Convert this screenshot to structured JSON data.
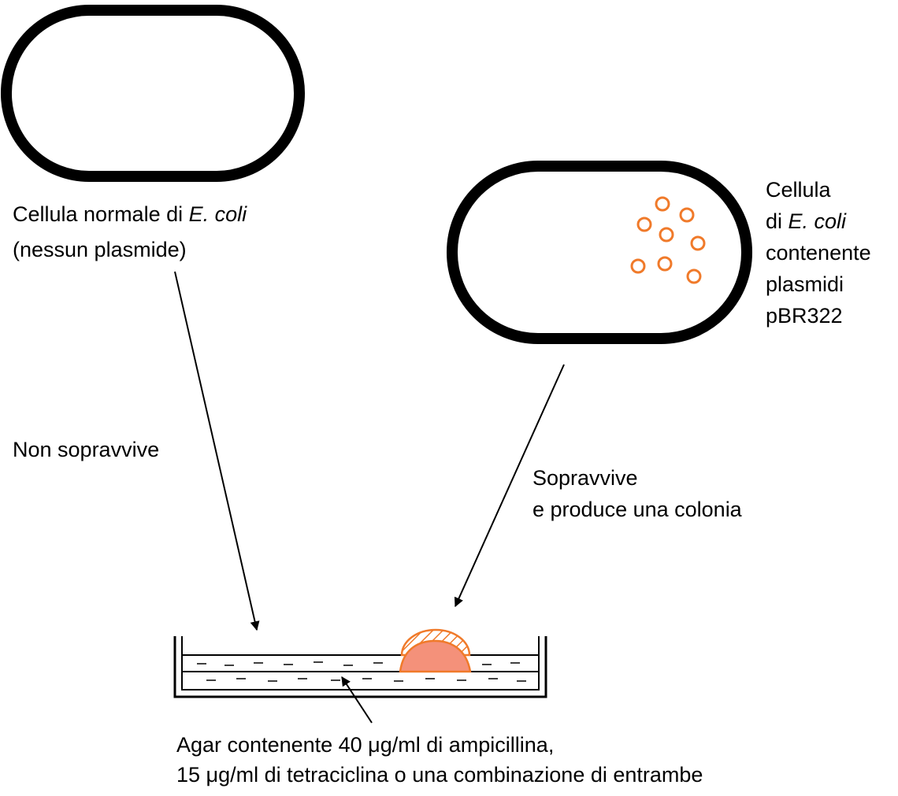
{
  "cell_normal": {
    "line1": "Cellula normale di ",
    "line1_italic": "E. coli",
    "line2": "(nessun plasmide)"
  },
  "cell_plasmid": {
    "line1": "Cellula",
    "line2_prefix": "di ",
    "line2_italic": "E. coli",
    "line3": "contenente",
    "line4": "plasmidi",
    "line5": "pBR322"
  },
  "outcome_normal": "Non sopravvive",
  "outcome_plasmid": {
    "line1": "Sopravvive",
    "line2": "e produce una colonia"
  },
  "agar": {
    "line1": "Agar contenente 40 μg/ml di ampicillina,",
    "line2": "15 μg/ml di tetraciclina o una combinazione di entrambe"
  },
  "colors": {
    "outline": "#000000",
    "plasmid": "#f07a2a",
    "colony_fill": "#f4917a",
    "colony_stroke": "#f07a2a"
  },
  "plasmid_count": 8
}
